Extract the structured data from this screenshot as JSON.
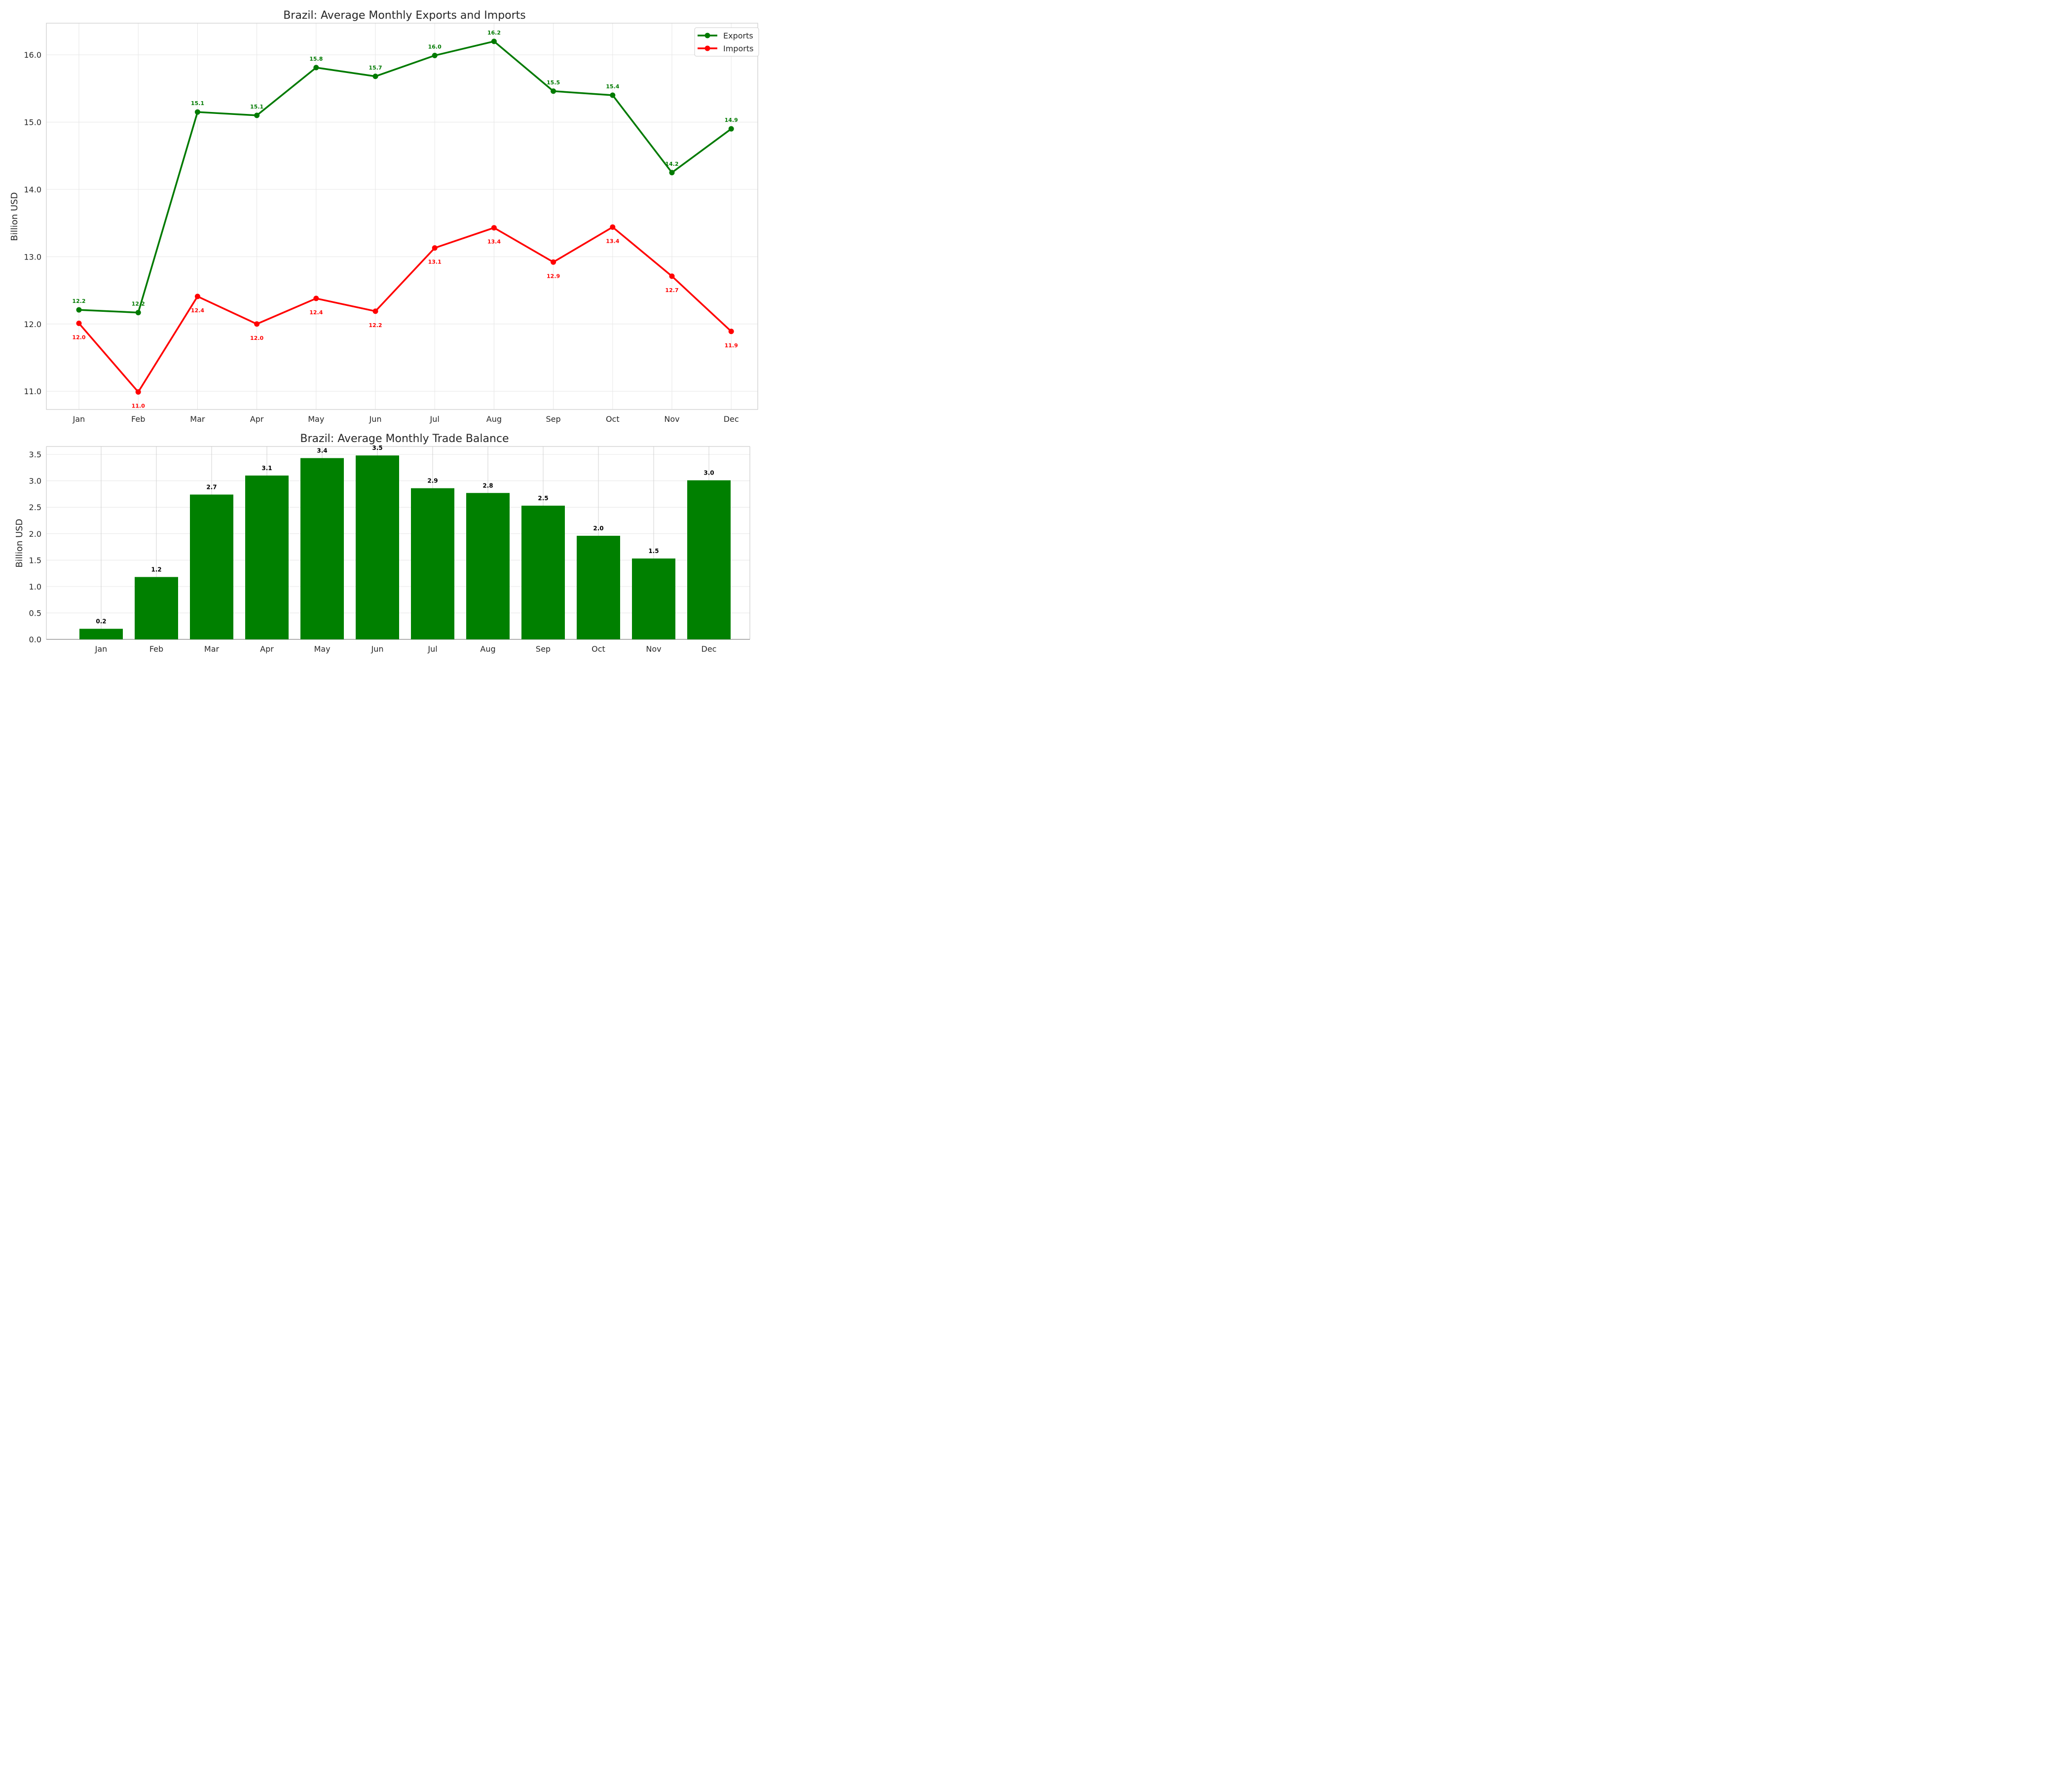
{
  "colors": {
    "exports": "#007a00",
    "imports": "#ff0000",
    "balance": "#008000",
    "grid": "#e6e6e6",
    "axis": "#cccccc",
    "text": "#262626"
  },
  "chart_data": [
    {
      "type": "line",
      "title": "Brazil: Average Monthly Exports and Imports",
      "xlabel": "",
      "ylabel": "Billion USD",
      "categories": [
        "Jan",
        "Feb",
        "Mar",
        "Apr",
        "May",
        "Jun",
        "Jul",
        "Aug",
        "Sep",
        "Oct",
        "Nov",
        "Dec"
      ],
      "ylim": [
        10.73,
        16.47
      ],
      "yticks": [
        11.0,
        12.0,
        13.0,
        14.0,
        15.0,
        16.0
      ],
      "ytick_labels": [
        "11.0",
        "12.0",
        "13.0",
        "14.0",
        "15.0",
        "16.0"
      ],
      "grid": true,
      "legend": "top-right",
      "series": [
        {
          "name": "Exports",
          "color": "#007a00",
          "label_position": "above",
          "values": [
            12.21,
            12.17,
            15.15,
            15.1,
            15.81,
            15.68,
            15.99,
            16.2,
            15.46,
            15.4,
            14.25,
            14.9
          ],
          "labels": [
            "12.2",
            "12.2",
            "15.1",
            "15.1",
            "15.8",
            "15.7",
            "16.0",
            "16.2",
            "15.5",
            "15.4",
            "14.2",
            "14.9"
          ]
        },
        {
          "name": "Imports",
          "color": "#ff0000",
          "label_position": "below",
          "values": [
            12.01,
            10.99,
            12.41,
            12.0,
            12.38,
            12.19,
            13.13,
            13.43,
            12.92,
            13.44,
            12.71,
            11.89
          ],
          "labels": [
            "12.0",
            "11.0",
            "12.4",
            "12.0",
            "12.4",
            "12.2",
            "13.1",
            "13.4",
            "12.9",
            "13.4",
            "12.7",
            "11.9"
          ]
        }
      ]
    },
    {
      "type": "bar",
      "title": "Brazil: Average Monthly Trade Balance",
      "xlabel": "",
      "ylabel": "Billion USD",
      "categories": [
        "Jan",
        "Feb",
        "Mar",
        "Apr",
        "May",
        "Jun",
        "Jul",
        "Aug",
        "Sep",
        "Oct",
        "Nov",
        "Dec"
      ],
      "ylim": [
        0,
        3.65
      ],
      "yticks": [
        0.0,
        0.5,
        1.0,
        1.5,
        2.0,
        2.5,
        3.0,
        3.5
      ],
      "ytick_labels": [
        "0.0",
        "0.5",
        "1.0",
        "1.5",
        "2.0",
        "2.5",
        "3.0",
        "3.5"
      ],
      "grid": true,
      "color": "#008000",
      "values": [
        0.2,
        1.18,
        2.74,
        3.1,
        3.43,
        3.48,
        2.86,
        2.77,
        2.53,
        1.96,
        1.53,
        3.01
      ],
      "labels": [
        "0.2",
        "1.2",
        "2.7",
        "3.1",
        "3.4",
        "3.5",
        "2.9",
        "2.8",
        "2.5",
        "2.0",
        "1.5",
        "3.0"
      ]
    }
  ]
}
